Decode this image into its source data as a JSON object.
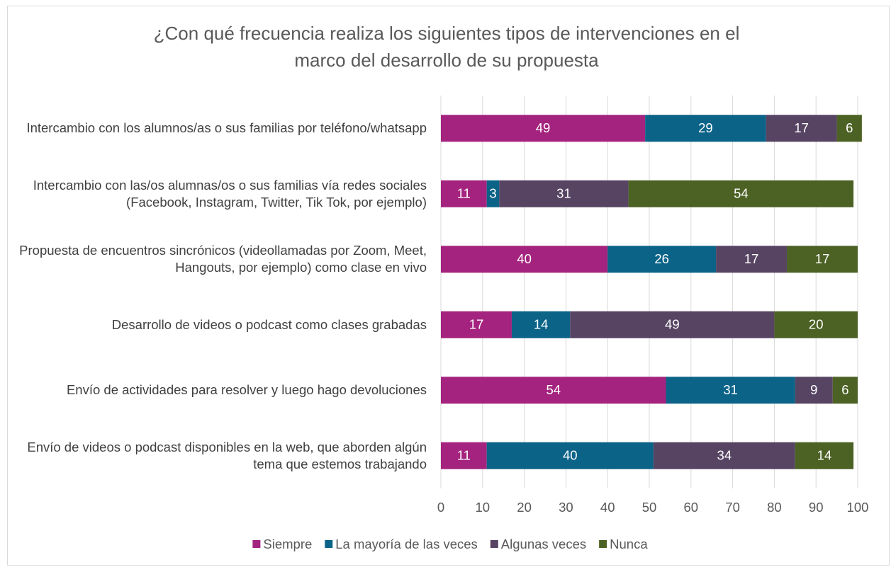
{
  "chart_data": {
    "type": "stacked_barh",
    "title": "¿Con qué frecuencia realiza los siguientes tipos de intervenciones en el marco del desarrollo de su propuesta",
    "categories": [
      "Intercambio con los alumnos/as o sus familias por teléfono/whatsapp",
      "Intercambio con las/os alumnas/os o sus familias vía redes sociales (Facebook, Instagram, Twitter, Tik Tok, por ejemplo)",
      "Propuesta de encuentros sincrónicos (videollamadas por Zoom, Meet, Hangouts, por ejemplo) como clase en vivo",
      "Desarrollo de videos o podcast como clases grabadas",
      "Envío de actividades para resolver y luego hago devoluciones",
      "Envío de videos o podcast disponibles en la web, que aborden algún tema que estemos trabajando"
    ],
    "series": [
      {
        "name": "Siempre",
        "color": "#a4237e",
        "values": [
          49,
          11,
          40,
          17,
          54,
          11
        ]
      },
      {
        "name": "La mayoría de las veces",
        "color": "#0b6388",
        "values": [
          29,
          3,
          26,
          14,
          31,
          40
        ]
      },
      {
        "name": "Algunas veces",
        "color": "#574463",
        "values": [
          17,
          31,
          17,
          49,
          9,
          34
        ]
      },
      {
        "name": "Nunca",
        "color": "#4c6124",
        "values": [
          6,
          54,
          17,
          20,
          6,
          14
        ]
      }
    ],
    "xlim": [
      0,
      100
    ],
    "xticks": [
      0,
      10,
      20,
      30,
      40,
      50,
      60,
      70,
      80,
      90,
      100
    ],
    "grid": true,
    "legend": "bottom"
  }
}
